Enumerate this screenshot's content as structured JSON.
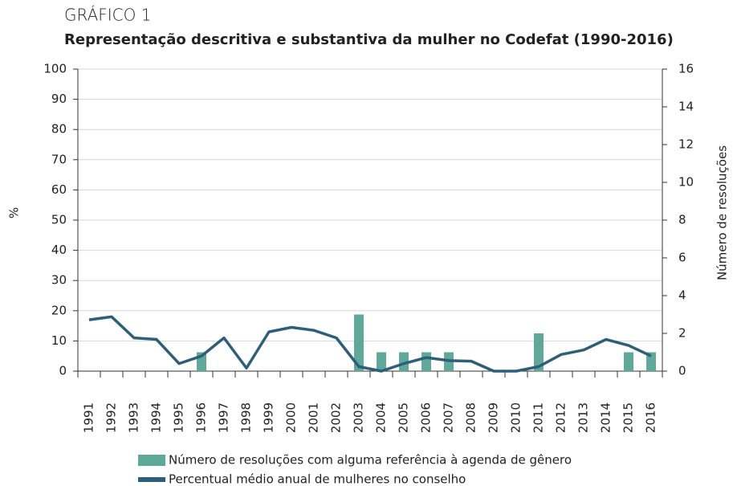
{
  "chart_data": {
    "type": "bar",
    "label": "GRÁFICO 1",
    "title": "Representação descritiva e substantiva da mulher no Codefat (1990-2016)",
    "y_label": "%",
    "y2_label": "Número de resoluções",
    "categories": [
      "1991",
      "1992",
      "1993",
      "1994",
      "1995",
      "1996",
      "1997",
      "1998",
      "1999",
      "2000",
      "2001",
      "2002",
      "2003",
      "2004",
      "2005",
      "2006",
      "2007",
      "2008",
      "2009",
      "2010",
      "2011",
      "2012",
      "2013",
      "2014",
      "2015",
      "2016"
    ],
    "series": [
      {
        "name": "Número de resoluções com alguma referência à agenda de gênero",
        "type": "bar",
        "axis": "y2",
        "color": "#5fa89a",
        "values": [
          0,
          0,
          0,
          0,
          0,
          1,
          0,
          0,
          0,
          0,
          0,
          0,
          3,
          1,
          1,
          1,
          1,
          0,
          0,
          0,
          2,
          0,
          0,
          0,
          1,
          1
        ]
      },
      {
        "name": "Percentual médio anual de mulheres no conselho",
        "type": "line",
        "color": "#2e5f7a",
        "values": [
          17,
          18,
          11,
          10.5,
          2.5,
          5,
          11,
          1,
          13,
          14.5,
          13.5,
          11,
          1.5,
          0,
          2.5,
          4.5,
          3.5,
          3.3,
          0,
          0,
          1.5,
          5.5,
          7,
          10.5,
          8.5,
          5
        ]
      }
    ],
    "ylim": [
      0,
      100
    ],
    "yticks": [
      0,
      10,
      20,
      30,
      40,
      50,
      60,
      70,
      80,
      90,
      100
    ],
    "y2lim": [
      0,
      16
    ],
    "y2ticks": [
      0,
      2,
      4,
      6,
      8,
      10,
      12,
      14,
      16
    ],
    "grid": true
  }
}
